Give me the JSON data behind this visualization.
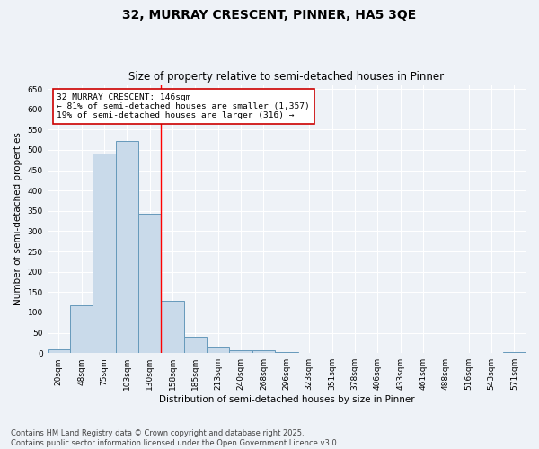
{
  "title1": "32, MURRAY CRESCENT, PINNER, HA5 3QE",
  "title2": "Size of property relative to semi-detached houses in Pinner",
  "xlabel": "Distribution of semi-detached houses by size in Pinner",
  "ylabel": "Number of semi-detached properties",
  "footnote": "Contains HM Land Registry data © Crown copyright and database right 2025.\nContains public sector information licensed under the Open Government Licence v3.0.",
  "categories": [
    "20sqm",
    "48sqm",
    "75sqm",
    "103sqm",
    "130sqm",
    "158sqm",
    "185sqm",
    "213sqm",
    "240sqm",
    "268sqm",
    "296sqm",
    "323sqm",
    "351sqm",
    "378sqm",
    "406sqm",
    "433sqm",
    "461sqm",
    "488sqm",
    "516sqm",
    "543sqm",
    "571sqm"
  ],
  "values": [
    10,
    118,
    490,
    523,
    342,
    128,
    40,
    16,
    8,
    7,
    2,
    0,
    0,
    0,
    0,
    0,
    0,
    0,
    0,
    0,
    3
  ],
  "bar_color": "#c9daea",
  "bar_edge_color": "#6699bb",
  "ylim": [
    0,
    660
  ],
  "yticks": [
    0,
    50,
    100,
    150,
    200,
    250,
    300,
    350,
    400,
    450,
    500,
    550,
    600,
    650
  ],
  "redline_x": 4.5,
  "annotation_line1": "32 MURRAY CRESCENT: 146sqm",
  "annotation_line2": "← 81% of semi-detached houses are smaller (1,357)",
  "annotation_line3": "19% of semi-detached houses are larger (316) →",
  "background_color": "#eef2f7",
  "grid_color": "#d8dde8",
  "title1_fontsize": 10,
  "title2_fontsize": 8.5,
  "axis_label_fontsize": 7.5,
  "tick_fontsize": 6.5,
  "annotation_fontsize": 6.8,
  "footnote_fontsize": 6.0
}
